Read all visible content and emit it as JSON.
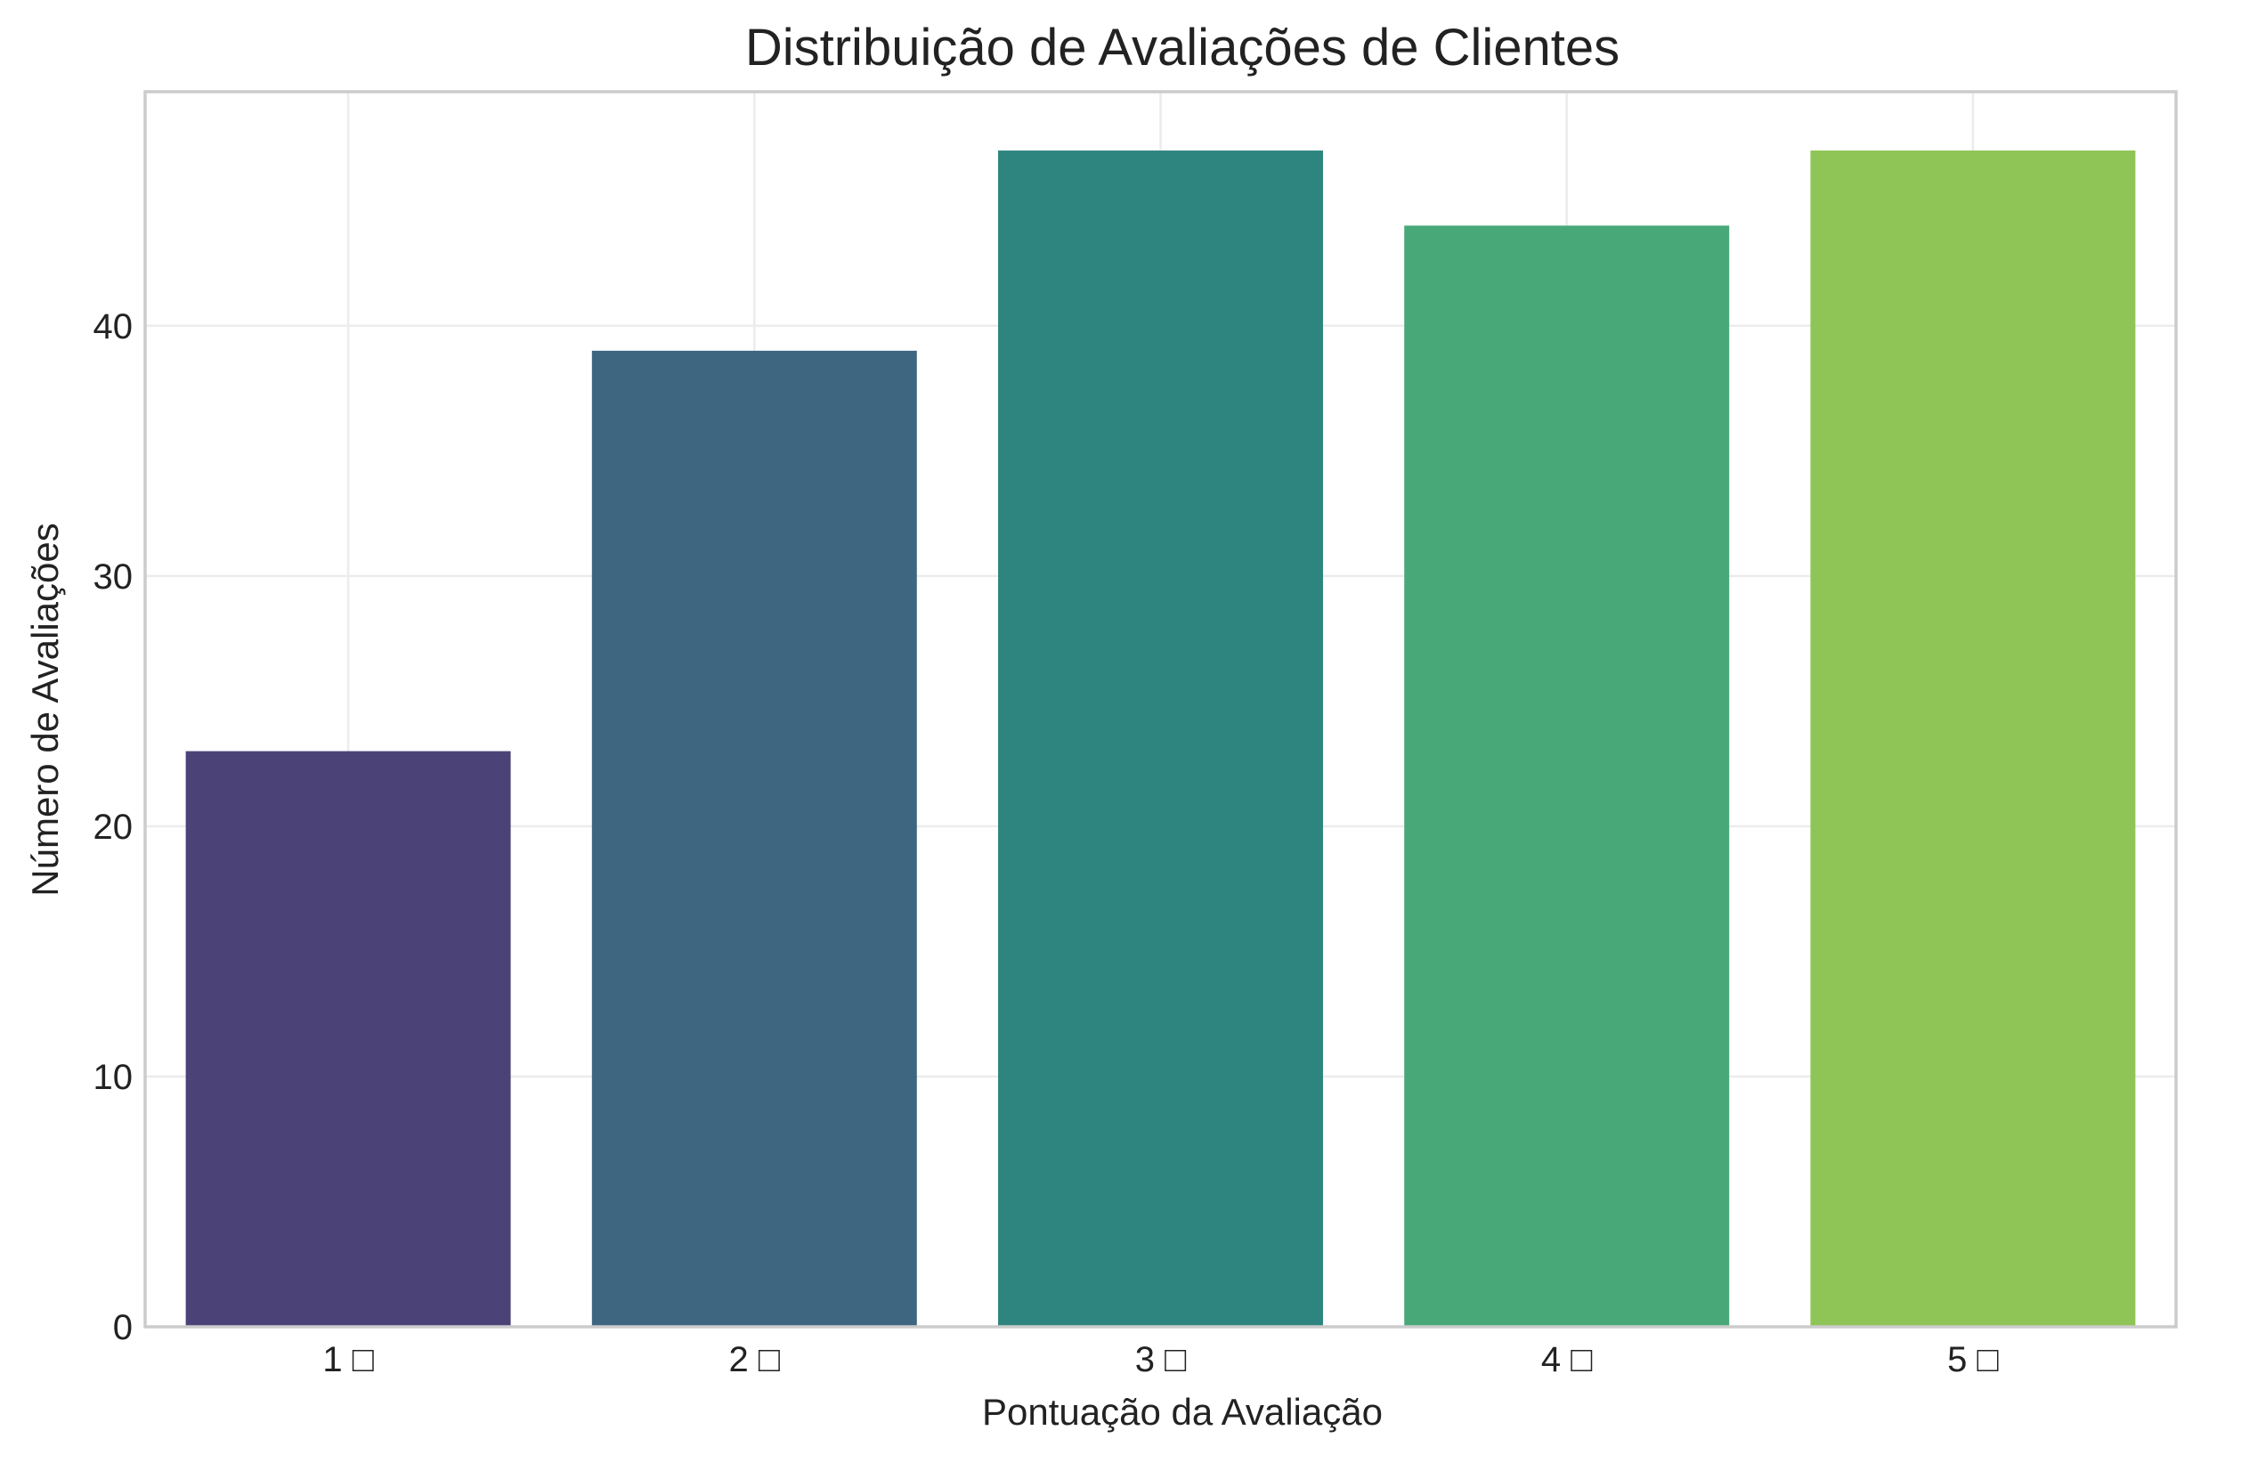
{
  "chart_data": {
    "type": "bar",
    "title": "Distribuição de Avaliações de Clientes",
    "xlabel": "Pontuação da Avaliação",
    "ylabel": "Número de Avaliações",
    "categories": [
      "1 □",
      "2 □",
      "3 □",
      "4 □",
      "5 □"
    ],
    "values": [
      23,
      39,
      47,
      44,
      47
    ],
    "colors": [
      "#4b4378",
      "#3e6681",
      "#2e857f",
      "#48a878",
      "#8fc456"
    ],
    "ylim": [
      0,
      49.35
    ],
    "yticks": [
      0,
      10,
      20,
      30,
      40
    ],
    "grid": true,
    "legend": "none"
  }
}
